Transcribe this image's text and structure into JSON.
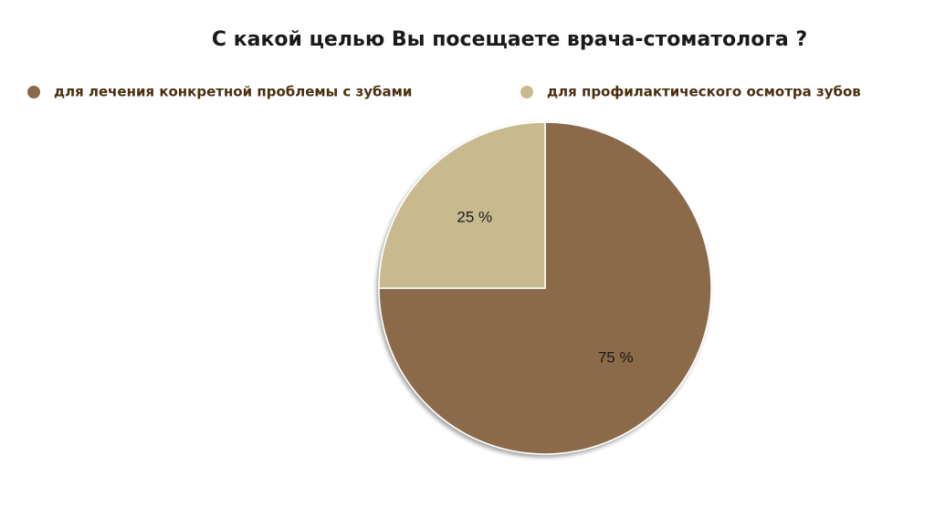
{
  "chart_data": {
    "type": "pie",
    "title": "С какой целью Вы посещаете врача-стоматолога ?",
    "categories": [
      "для лечения конкретной проблемы с зубами",
      "для профилактического осмотра зубов"
    ],
    "values": [
      75,
      25
    ],
    "value_labels": [
      "75 %",
      "25 %"
    ],
    "colors": [
      "#8a6a4a",
      "#c9b98f"
    ],
    "legend": "top"
  }
}
